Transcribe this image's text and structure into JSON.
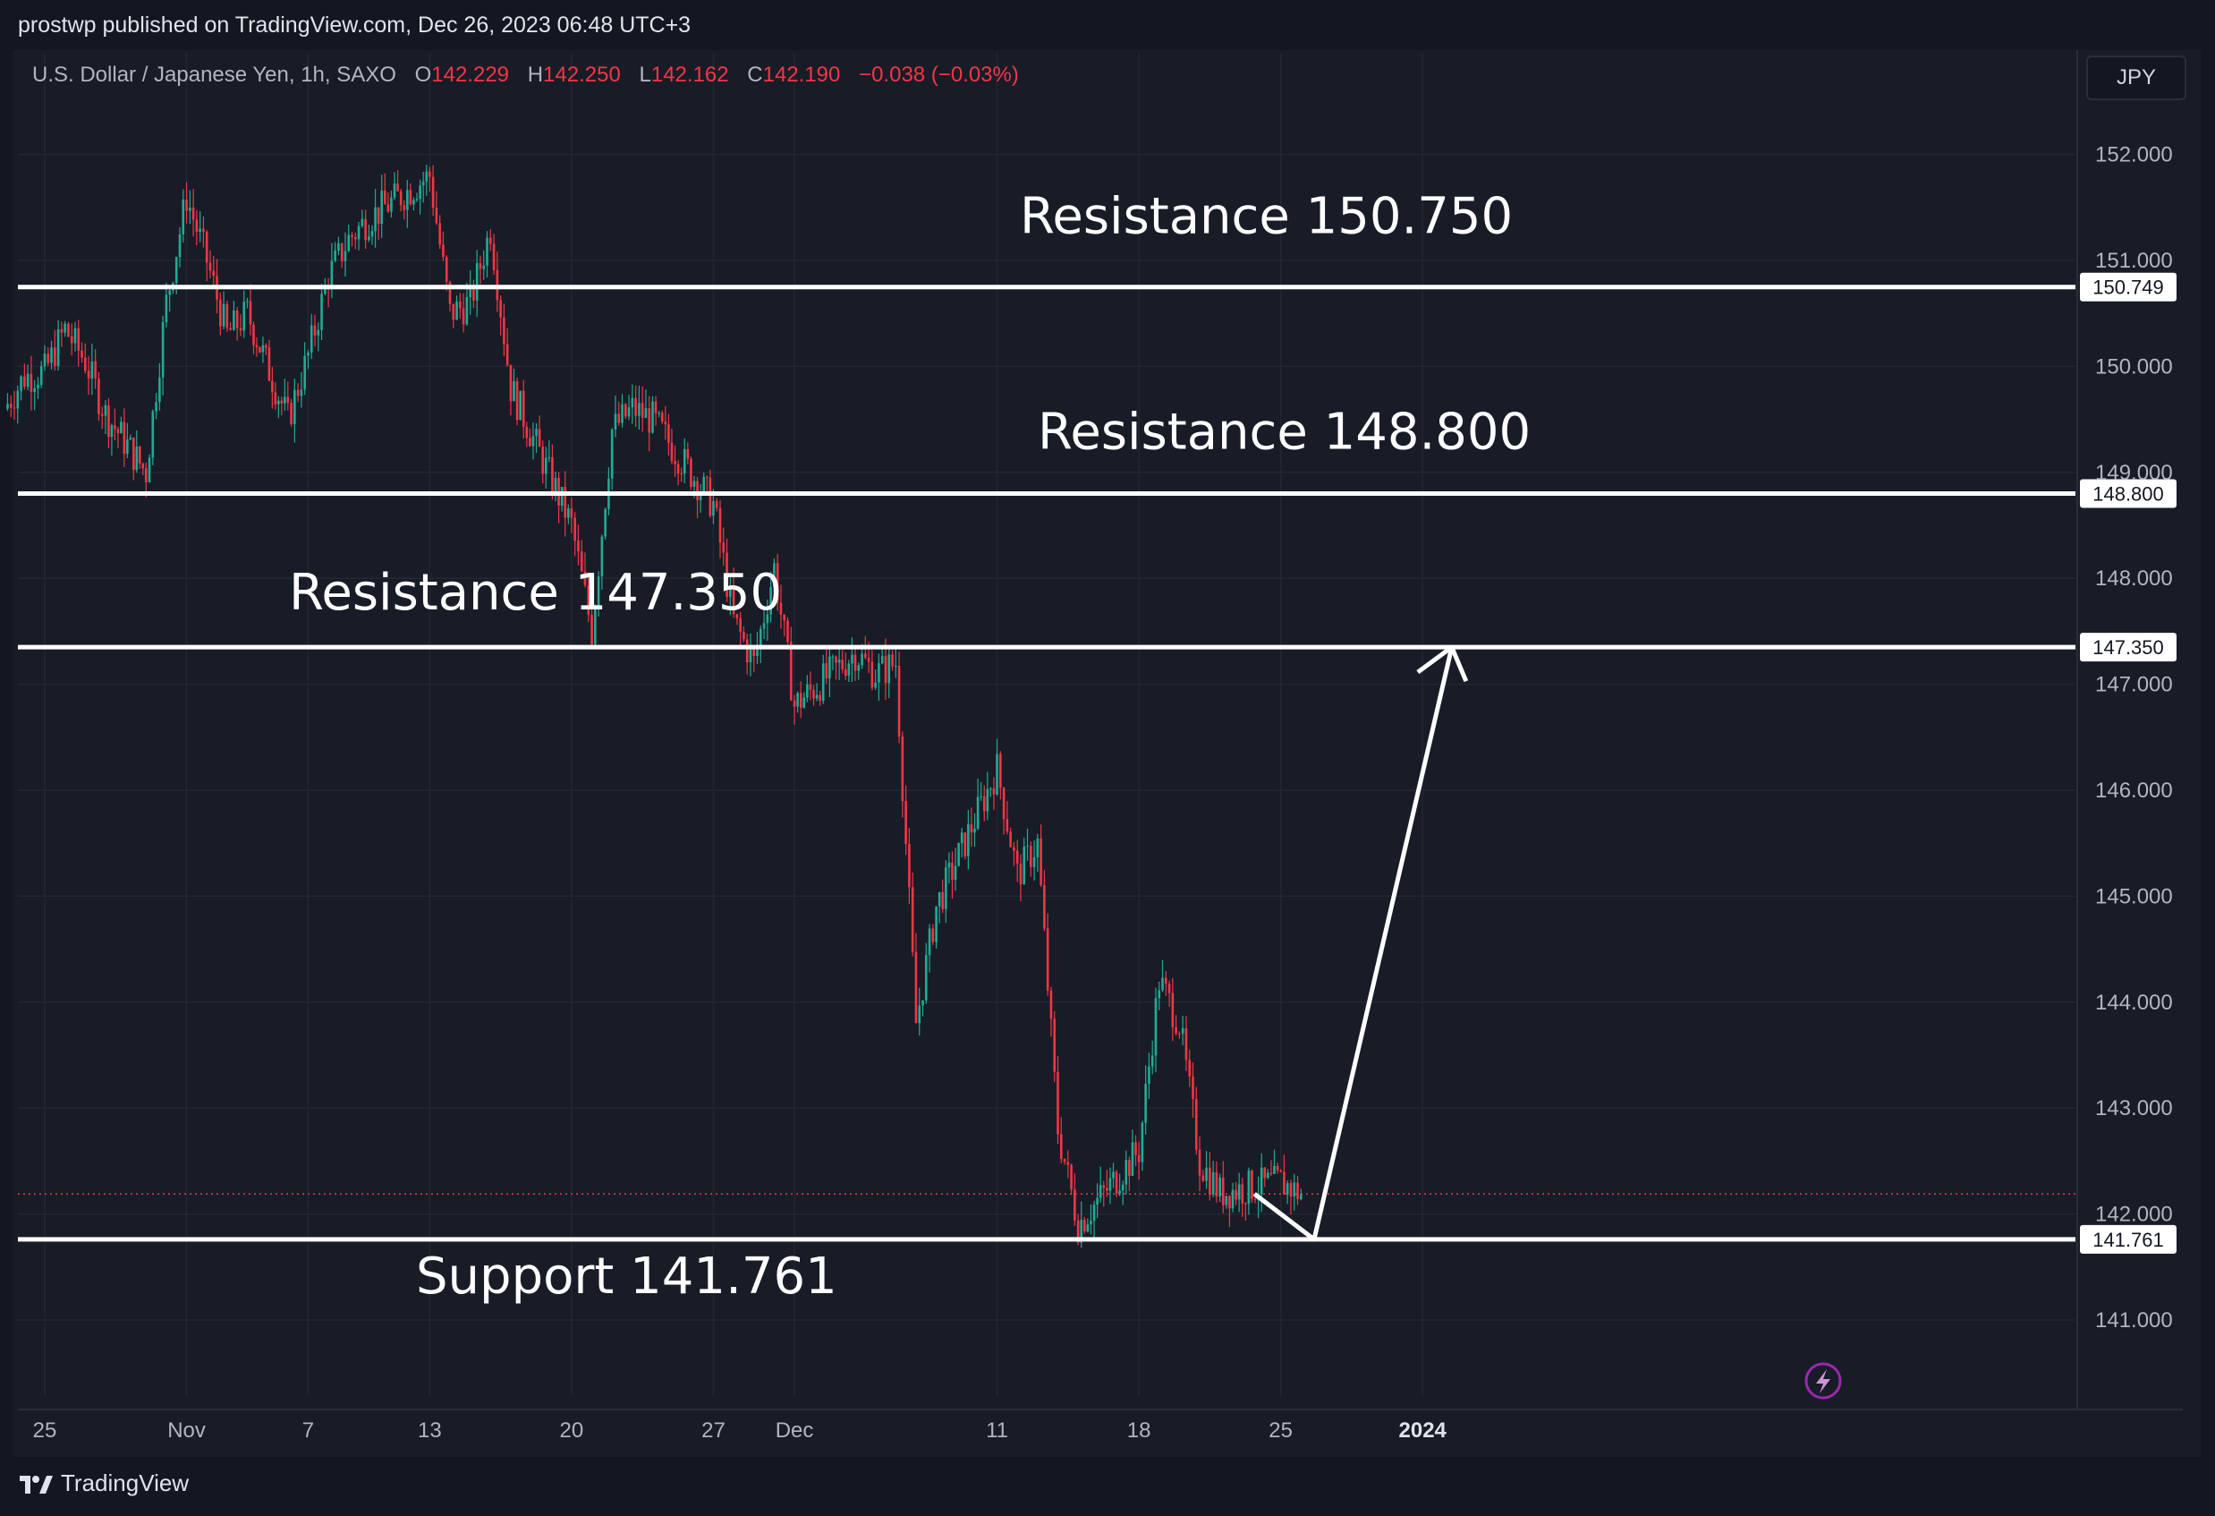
{
  "header": {
    "published": "prostwp published on TradingView.com, Dec 26, 2023 06:48 UTC+3"
  },
  "legend": {
    "symbol": "U.S. Dollar / Japanese Yen, 1h, SAXO",
    "open_label": "O",
    "open": "142.229",
    "high_label": "H",
    "high": "142.250",
    "low_label": "L",
    "low": "142.162",
    "close_label": "C",
    "close": "142.190",
    "change": "−0.038 (−0.03%)"
  },
  "currency": "JPY",
  "footer": {
    "brand": "TradingView"
  },
  "colors": {
    "up": "#22ab94",
    "down": "#f23645",
    "line": "#ffffff",
    "grid": "#232734",
    "axis_text": "#b2b5be",
    "current_price": "#f23645"
  },
  "chart_data": {
    "type": "candlestick",
    "symbol": "U.S. Dollar / Japanese Yen, 1h, SAXO",
    "x_ticks": [
      "25",
      "Nov",
      "7",
      "13",
      "20",
      "27",
      "Dec",
      "11",
      "18",
      "25",
      "2024"
    ],
    "y_ticks": [
      "152.000",
      "151.000",
      "150.000",
      "149.000",
      "148.000",
      "147.000",
      "146.000",
      "145.000",
      "144.000",
      "143.000",
      "142.000",
      "141.000"
    ],
    "ylim": [
      140.2,
      152.4
    ],
    "current_price": 142.19,
    "levels": [
      {
        "label": "Resistance 150.750",
        "value": 150.749,
        "tag": "150.749"
      },
      {
        "label": "Resistance 148.800",
        "value": 148.8,
        "tag": "148.800"
      },
      {
        "label": "Resistance 147.350",
        "value": 147.35,
        "tag": "147.350"
      },
      {
        "label": "Support 141.761",
        "value": 141.761,
        "tag": "141.761"
      }
    ],
    "price_path": [
      [
        "Oct 23",
        149.6
      ],
      [
        "Oct 24",
        149.9
      ],
      [
        "Oct 25",
        149.95
      ],
      [
        "Oct 26",
        150.35
      ],
      [
        "Oct 27",
        150.05
      ],
      [
        "Oct 28",
        149.55
      ],
      [
        "Oct 30",
        149.0
      ],
      [
        "Oct 31",
        150.6
      ],
      [
        "Nov 1",
        151.6
      ],
      [
        "Nov 2",
        151.0
      ],
      [
        "Nov 3",
        150.3
      ],
      [
        "Nov 4",
        150.5
      ],
      [
        "Nov 6",
        149.5
      ],
      [
        "Nov 7",
        150.1
      ],
      [
        "Nov 8",
        150.85
      ],
      [
        "Nov 9",
        151.2
      ],
      [
        "Nov 10",
        151.4
      ],
      [
        "Nov 13",
        151.8
      ],
      [
        "Nov 14",
        150.5
      ],
      [
        "Nov 15",
        150.6
      ],
      [
        "Nov 16",
        151.3
      ],
      [
        "Nov 17",
        149.8
      ],
      [
        "Nov 20",
        148.5
      ],
      [
        "Nov 21",
        147.5
      ],
      [
        "Nov 22",
        149.4
      ],
      [
        "Nov 23",
        149.6
      ],
      [
        "Nov 24",
        149.5
      ],
      [
        "Nov 27",
        148.7
      ],
      [
        "Nov 28",
        147.6
      ],
      [
        "Nov 29",
        147.2
      ],
      [
        "Nov 30",
        148.1
      ],
      [
        "Dec 1",
        146.8
      ],
      [
        "Dec 4",
        147.3
      ],
      [
        "Dec 5",
        147.1
      ],
      [
        "Dec 6",
        147.2
      ],
      [
        "Dec 7",
        143.8
      ],
      [
        "Dec 8",
        144.9
      ],
      [
        "Dec 11",
        146.2
      ],
      [
        "Dec 12",
        145.2
      ],
      [
        "Dec 13",
        145.5
      ],
      [
        "Dec 14",
        142.8
      ],
      [
        "Dec 15",
        141.9
      ],
      [
        "Dec 18",
        142.6
      ],
      [
        "Dec 19",
        144.2
      ],
      [
        "Dec 20",
        143.8
      ],
      [
        "Dec 21",
        142.5
      ],
      [
        "Dec 22",
        142.2
      ],
      [
        "Dec 25",
        142.3
      ],
      [
        "Dec 26",
        142.19
      ]
    ],
    "projection": [
      [
        "Dec 26",
        142.19
      ],
      [
        "Dec 27",
        141.761
      ],
      [
        "Jan 2",
        147.35
      ]
    ]
  }
}
